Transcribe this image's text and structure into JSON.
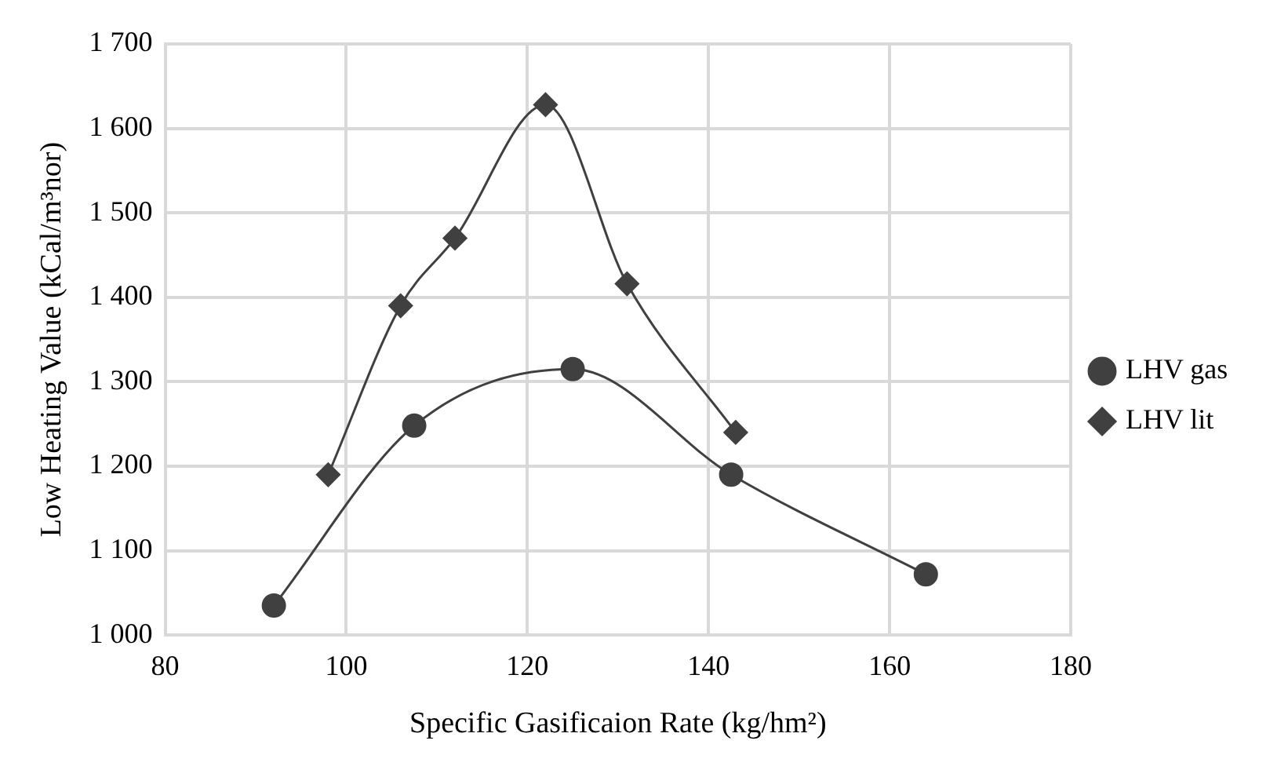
{
  "chart_data": {
    "type": "line",
    "xlabel": "Specific Gasificaion Rate (kg/hm²)",
    "ylabel": "Low Heating Value (kCal/m³nor)",
    "xlim": [
      80,
      180
    ],
    "xticks": [
      80,
      100,
      120,
      140,
      160,
      180
    ],
    "ylim": [
      1000,
      1700
    ],
    "yticks": [
      {
        "value": 1000,
        "label": "1 000"
      },
      {
        "value": 1100,
        "label": "1 100"
      },
      {
        "value": 1200,
        "label": "1 200"
      },
      {
        "value": 1300,
        "label": "1 300"
      },
      {
        "value": 1400,
        "label": "1 400"
      },
      {
        "value": 1500,
        "label": "1 500"
      },
      {
        "value": 1600,
        "label": "1 600"
      },
      {
        "value": 1700,
        "label": "1 700"
      }
    ],
    "grid": true,
    "legend": "right",
    "series": [
      {
        "name": "LHV gas",
        "color": "#404040",
        "marker": "circle",
        "x": [
          92,
          107.5,
          125,
          142.5,
          164
        ],
        "values": [
          1035,
          1248,
          1315,
          1190,
          1072
        ]
      },
      {
        "name": "LHV lit",
        "color": "#404040",
        "marker": "diamond",
        "x": [
          98,
          106,
          112,
          122,
          131,
          143
        ],
        "values": [
          1190,
          1390,
          1470,
          1628,
          1416,
          1240
        ]
      }
    ]
  }
}
